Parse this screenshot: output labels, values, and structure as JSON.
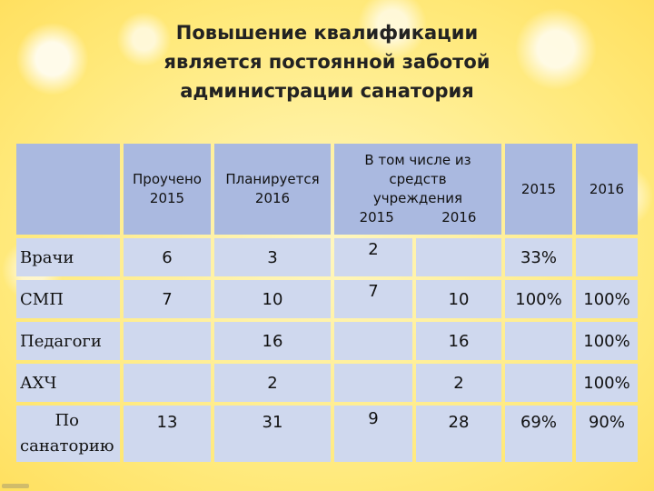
{
  "title": {
    "line1": "Повышение квалификации",
    "line2": "является постоянной заботой",
    "line3": "администрации санатория"
  },
  "table": {
    "headers": {
      "trained": "Проучено\n2015",
      "planned": "Планируется\n2016",
      "including": "В том числе из\nсредств\nучреждения\n2015           2016",
      "y2015": "2015",
      "y2016": "2016"
    },
    "rows": [
      {
        "label": "Врачи",
        "trained": "6",
        "planned": "3",
        "inst2015": "2",
        "inst2016": "",
        "p2015": "33%",
        "p2016": ""
      },
      {
        "label": "СМП",
        "trained": "7",
        "planned": "10",
        "inst2015": "7",
        "inst2016": "10",
        "p2015": "100%",
        "p2016": "100%"
      },
      {
        "label": "Педагоги",
        "trained": "",
        "planned": "16",
        "inst2015": "",
        "inst2016": "16",
        "p2015": "",
        "p2016": "100%"
      },
      {
        "label": "АХЧ",
        "trained": "",
        "planned": "2",
        "inst2015": "",
        "inst2016": "2",
        "p2015": "",
        "p2016": "100%"
      },
      {
        "label": "По\nсанаторию",
        "trained": "13",
        "planned": "31",
        "inst2015": "9",
        "inst2016": "28",
        "p2015": "69%",
        "p2016": "90%"
      }
    ]
  }
}
